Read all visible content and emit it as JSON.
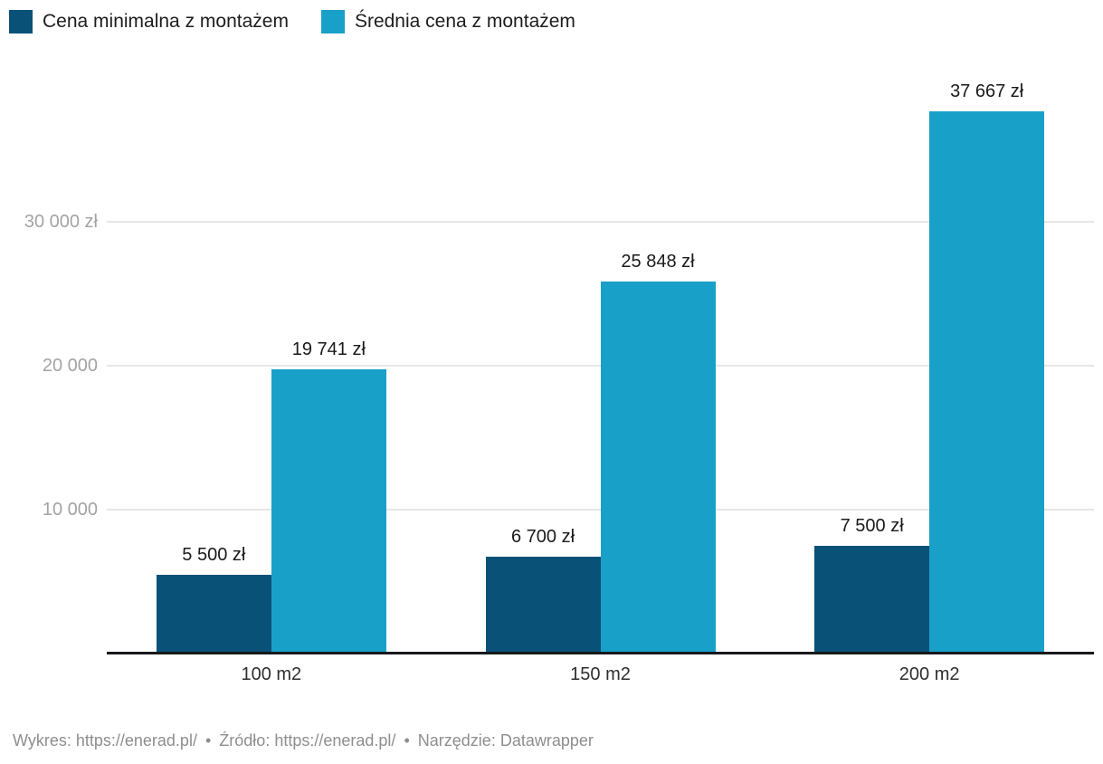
{
  "legend": {
    "items": [
      {
        "label": "Cena minimalna z montażem",
        "color": "#0a5178"
      },
      {
        "label": "Średnia cena z montażem",
        "color": "#19a0c8"
      }
    ]
  },
  "chart_data": {
    "type": "bar",
    "title": "",
    "categories": [
      "100 m2",
      "150 m2",
      "200 m2"
    ],
    "series": [
      {
        "name": "Cena minimalna z montażem",
        "color": "#0a5178",
        "values": [
          5500,
          6700,
          7500
        ],
        "labels": [
          "5 500 zł",
          "6 700 zł",
          "7 500 zł"
        ]
      },
      {
        "name": "Średnia cena z montażem",
        "color": "#19a0c8",
        "values": [
          19741,
          25848,
          37667
        ],
        "labels": [
          "19 741 zł",
          "25 848 zł",
          "37 667 zł"
        ]
      }
    ],
    "y_axis": {
      "unit": "zł",
      "ticks": [
        {
          "value": 10000,
          "label": "10 000"
        },
        {
          "value": 20000,
          "label": "20 000"
        },
        {
          "value": 30000,
          "label": "30 000 zł"
        }
      ],
      "range": [
        0,
        40000
      ]
    },
    "xlabel": "",
    "ylabel": "",
    "grid": "horizontal",
    "legend_position": "top-left",
    "value_labels_shown": true
  },
  "footer": {
    "chart_label": "Wykres:",
    "chart_link": "https://enerad.pl/",
    "separator": "•",
    "source_label": "Źródło:",
    "source_link": "https://enerad.pl/",
    "tool_label": "Narzędzie:",
    "tool_name": "Datawrapper"
  },
  "colors": {
    "grid": "#e6e6e6",
    "axis": "#18191c",
    "tick_text": "#a3a3a3",
    "value_text": "#1a1a1a",
    "category_text": "#2e2e2e",
    "footer_text": "#8e8e8e"
  }
}
